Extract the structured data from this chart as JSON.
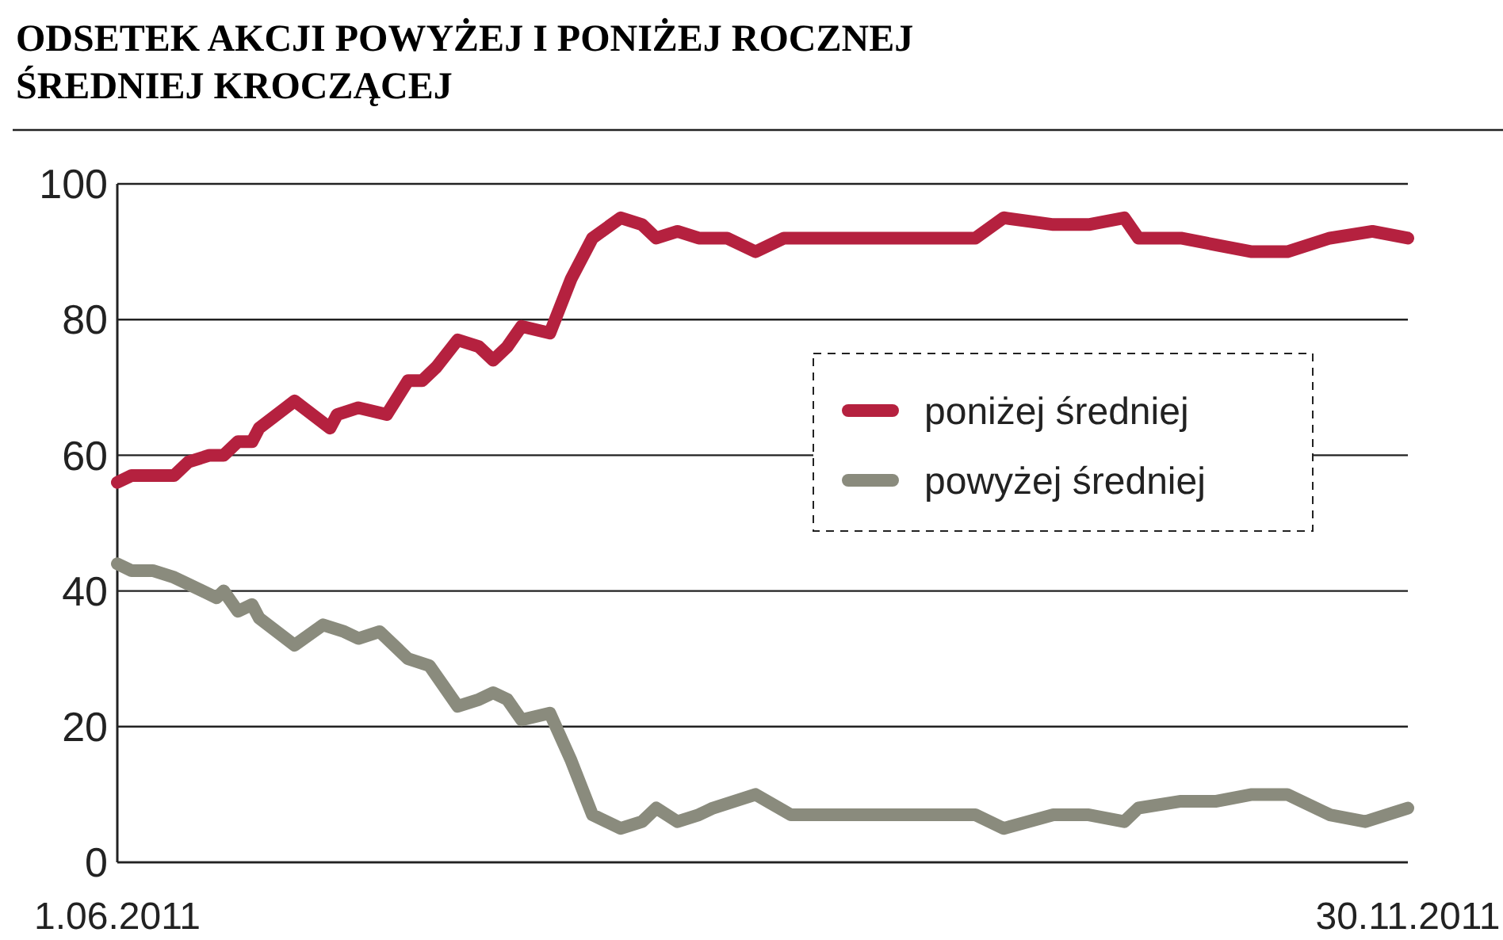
{
  "chart_data": {
    "type": "line",
    "title": "ODSETEK AKCJI POWYŻEJ I PONIŻEJ ROCZNEJ ŚREDNIEJ KROCZĄCEJ",
    "xlim": [
      "2011-06-01",
      "2011-11-30"
    ],
    "xticks": [
      {
        "value": "2011-06-01",
        "label": "1.06.2011"
      },
      {
        "value": "2011-11-30",
        "label": "30.11.2011"
      }
    ],
    "ylim": [
      0,
      100
    ],
    "yticks": [
      0,
      20,
      40,
      60,
      80,
      100
    ],
    "grid": "y",
    "legend": "right",
    "line_style": "solid",
    "series": [
      {
        "name": "poniżej średniej",
        "color": "#b5213f",
        "x": [
          "2011-06-01",
          "2011-06-03",
          "2011-06-06",
          "2011-06-09",
          "2011-06-11",
          "2011-06-14",
          "2011-06-16",
          "2011-06-18",
          "2011-06-20",
          "2011-06-21",
          "2011-06-26",
          "2011-07-01",
          "2011-07-02",
          "2011-07-05",
          "2011-07-09",
          "2011-07-12",
          "2011-07-14",
          "2011-07-16",
          "2011-07-19",
          "2011-07-22",
          "2011-07-24",
          "2011-07-26",
          "2011-07-28",
          "2011-08-01",
          "2011-08-04",
          "2011-08-07",
          "2011-08-11",
          "2011-08-14",
          "2011-08-16",
          "2011-08-19",
          "2011-08-22",
          "2011-08-24",
          "2011-08-26",
          "2011-08-30",
          "2011-09-03",
          "2011-09-09",
          "2011-09-30",
          "2011-10-04",
          "2011-10-11",
          "2011-10-16",
          "2011-10-21",
          "2011-10-23",
          "2011-10-29",
          "2011-11-03",
          "2011-11-08",
          "2011-11-13",
          "2011-11-19",
          "2011-11-25",
          "2011-11-30"
        ],
        "values": [
          56,
          57,
          57,
          57,
          59,
          60,
          60,
          62,
          62,
          64,
          68,
          64,
          66,
          67,
          66,
          71,
          71,
          73,
          77,
          76,
          74,
          76,
          79,
          78,
          86,
          92,
          95,
          94,
          92,
          93,
          92,
          92,
          92,
          90,
          92,
          92,
          92,
          95,
          94,
          94,
          95,
          92,
          92,
          91,
          90,
          90,
          92,
          93,
          92
        ]
      },
      {
        "name": "powyżej średniej",
        "color": "#8a8b7d",
        "x": [
          "2011-06-01",
          "2011-06-03",
          "2011-06-06",
          "2011-06-09",
          "2011-06-11",
          "2011-06-15",
          "2011-06-16",
          "2011-06-18",
          "2011-06-20",
          "2011-06-21",
          "2011-06-26",
          "2011-06-30",
          "2011-07-03",
          "2011-07-05",
          "2011-07-08",
          "2011-07-12",
          "2011-07-15",
          "2011-07-17",
          "2011-07-19",
          "2011-07-22",
          "2011-07-24",
          "2011-07-26",
          "2011-07-28",
          "2011-08-01",
          "2011-08-04",
          "2011-08-07",
          "2011-08-11",
          "2011-08-14",
          "2011-08-16",
          "2011-08-19",
          "2011-08-22",
          "2011-08-24",
          "2011-08-30",
          "2011-09-04",
          "2011-09-30",
          "2011-10-04",
          "2011-10-11",
          "2011-10-16",
          "2011-10-21",
          "2011-10-23",
          "2011-10-29",
          "2011-11-03",
          "2011-11-08",
          "2011-11-13",
          "2011-11-19",
          "2011-11-24",
          "2011-11-30"
        ],
        "values": [
          44,
          43,
          43,
          42,
          41,
          39,
          40,
          37,
          38,
          36,
          32,
          35,
          34,
          33,
          34,
          30,
          29,
          26,
          23,
          24,
          25,
          24,
          21,
          22,
          15,
          7,
          5,
          6,
          8,
          6,
          7,
          8,
          10,
          7,
          7,
          5,
          7,
          7,
          6,
          8,
          9,
          9,
          10,
          10,
          7,
          6,
          8
        ]
      }
    ]
  }
}
